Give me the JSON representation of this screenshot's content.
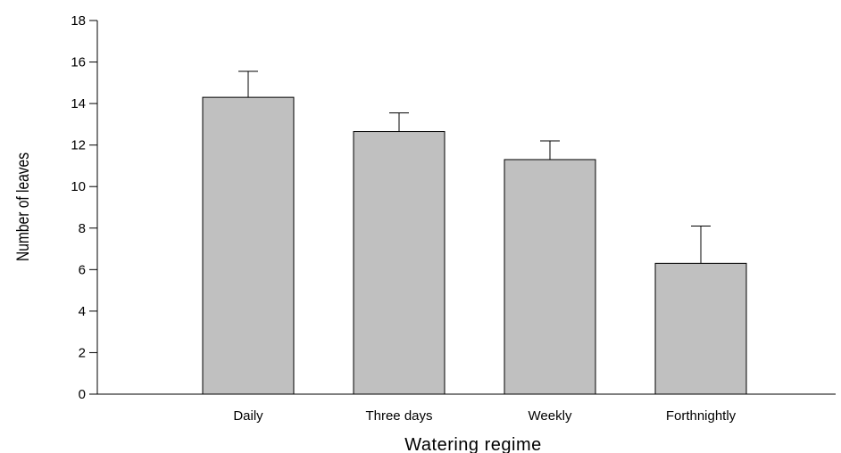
{
  "chart_data": {
    "type": "bar",
    "categories": [
      "Daily",
      "Three days",
      "Weekly",
      "Forthnightly"
    ],
    "values": [
      14.3,
      12.65,
      11.3,
      6.3
    ],
    "error": [
      1.25,
      0.9,
      0.9,
      1.8
    ],
    "xlabel": "Watering regime",
    "ylabel": "Number of leaves",
    "ylim": [
      0,
      18
    ],
    "yticks": [
      0,
      2,
      4,
      6,
      8,
      10,
      12,
      14,
      16,
      18
    ],
    "grid": false,
    "bar_color": "#c0c0c0"
  }
}
